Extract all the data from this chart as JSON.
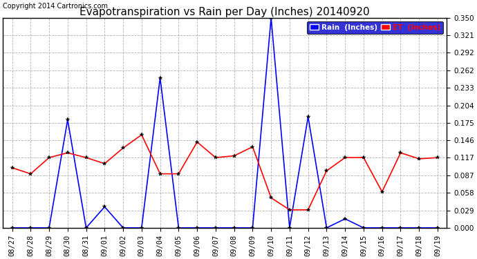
{
  "title": "Evapotranspiration vs Rain per Day (Inches) 20140920",
  "copyright": "Copyright 2014 Cartronics.com",
  "dates": [
    "08/27",
    "08/28",
    "08/29",
    "08/30",
    "08/31",
    "09/01",
    "09/02",
    "09/03",
    "09/04",
    "09/05",
    "09/06",
    "09/07",
    "09/08",
    "09/09",
    "09/10",
    "09/11",
    "09/12",
    "09/13",
    "09/14",
    "09/15",
    "09/16",
    "09/17",
    "09/18",
    "09/19"
  ],
  "rain_inches": [
    0.0,
    0.0,
    0.0,
    0.18,
    0.0,
    0.035,
    0.0,
    0.0,
    0.25,
    0.0,
    0.0,
    0.0,
    0.0,
    0.0,
    0.35,
    0.0,
    0.185,
    0.0,
    0.015,
    0.0,
    0.0,
    0.0,
    0.0,
    0.0
  ],
  "et_inches": [
    0.1,
    0.09,
    0.117,
    0.125,
    0.117,
    0.107,
    0.133,
    0.155,
    0.09,
    0.09,
    0.143,
    0.117,
    0.12,
    0.135,
    0.05,
    0.03,
    0.03,
    0.095,
    0.117,
    0.117,
    0.06,
    0.125,
    0.115,
    0.117
  ],
  "rain_color": "#0000ff",
  "et_color": "#ff0000",
  "bg_color": "#ffffff",
  "plot_bg_color": "#ffffff",
  "grid_color": "#b0b0b0",
  "title_fontsize": 11,
  "tick_fontsize": 7.5,
  "copyright_fontsize": 7,
  "legend_rain_label": "Rain  (Inches)",
  "legend_et_label": "ET  (Inches)",
  "ylim": [
    0.0,
    0.35
  ],
  "yticks": [
    0.0,
    0.029,
    0.058,
    0.087,
    0.117,
    0.146,
    0.175,
    0.204,
    0.233,
    0.262,
    0.292,
    0.321,
    0.35
  ],
  "marker_size": 4,
  "line_width": 1.2
}
